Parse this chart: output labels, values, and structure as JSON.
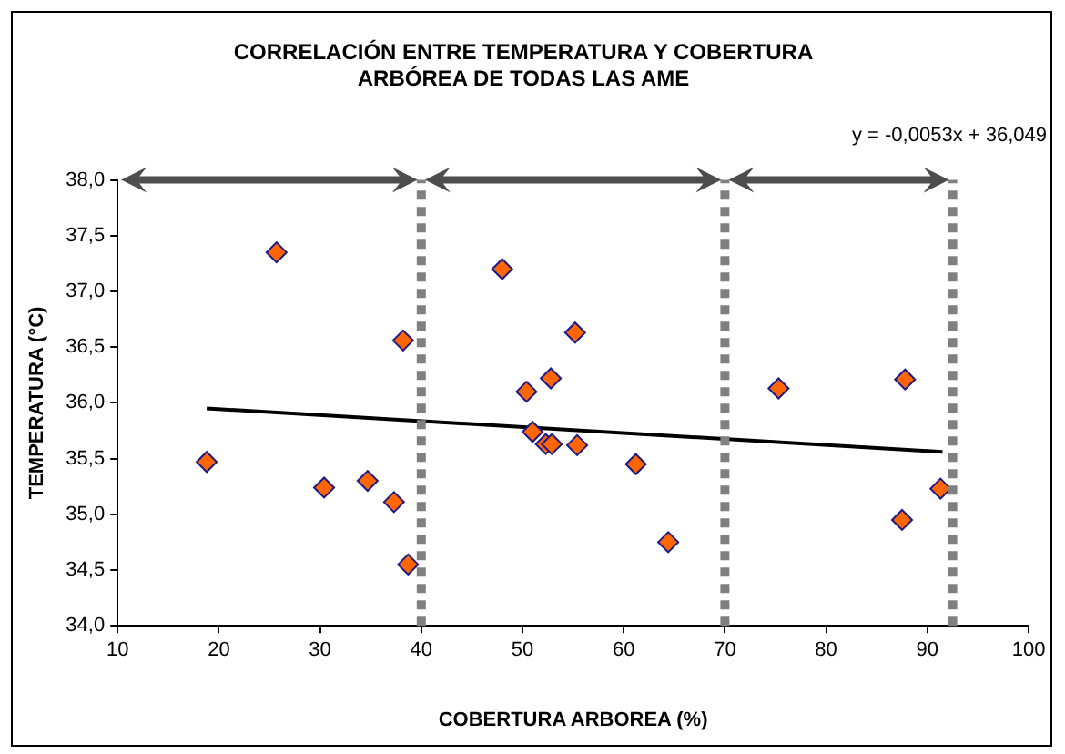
{
  "chart_data": {
    "type": "scatter",
    "title": "CORRELACIÓN ENTRE TEMPERATURA Y COBERTURA ARBÓREA DE TODAS LAS AME",
    "xlabel": "COBERTURA ARBOREA (%)",
    "ylabel": "TEMPERATURA (°C)",
    "annotations": [
      "y = -0,0053x + 36,049"
    ],
    "series": [
      {
        "color": "#ff6600",
        "marker": "diamond",
        "x": [
          18.8,
          25.7,
          30.4,
          34.7,
          37.3,
          38.2,
          38.7,
          48.0,
          50.4,
          51.0,
          52.3,
          52.8,
          52.9,
          55.2,
          55.4,
          61.2,
          64.4,
          75.3,
          87.5,
          87.8,
          91.3
        ],
        "values": [
          35.47,
          37.35,
          35.24,
          35.3,
          35.11,
          36.56,
          34.55,
          37.2,
          36.1,
          35.74,
          35.63,
          36.22,
          35.63,
          36.63,
          35.62,
          35.45,
          34.75,
          36.13,
          34.95,
          36.21,
          35.23
        ]
      },
      {
        "type": "line",
        "color": "#000000",
        "marker": "none",
        "line_style": "solid",
        "x": [
          18.8,
          91.5
        ],
        "values": [
          35.95,
          35.56
        ]
      }
    ],
    "ref_lines": [
      {
        "axis": "x",
        "value": 40,
        "color": "#808080",
        "line_style": "dotted"
      },
      {
        "axis": "x",
        "value": 70,
        "color": "#808080",
        "line_style": "dotted"
      },
      {
        "axis": "x",
        "value": 92.5,
        "color": "#808080",
        "line_style": "dotted"
      }
    ],
    "xlim": [
      10,
      100
    ],
    "xticks": [
      10,
      20,
      30,
      40,
      50,
      60,
      70,
      80,
      90,
      100
    ],
    "ylim": [
      34,
      38
    ],
    "yticks": [
      {
        "value": 34,
        "label": "34,0"
      },
      {
        "value": 34.5,
        "label": "34,5"
      },
      {
        "value": 35,
        "label": "35,0"
      },
      {
        "value": 35.5,
        "label": "35,5"
      },
      {
        "value": 36,
        "label": "36,0"
      },
      {
        "value": 36.5,
        "label": "36,5"
      },
      {
        "value": 37,
        "label": "37,0"
      },
      {
        "value": 37.5,
        "label": "37,5"
      },
      {
        "value": 38,
        "label": "38,0"
      }
    ],
    "grid": false,
    "legend": false
  }
}
